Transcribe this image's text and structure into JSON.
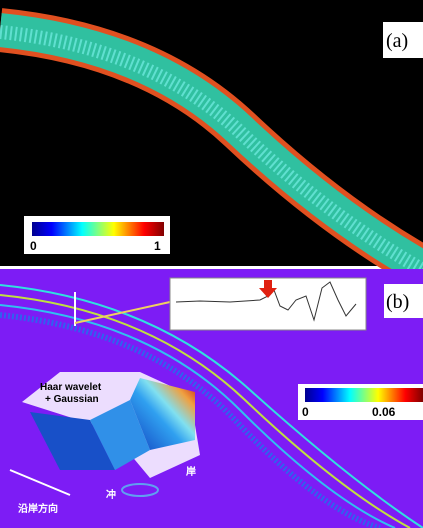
{
  "panel_a": {
    "label": "(a)",
    "colorbar": {
      "min": 0,
      "max": 1
    }
  },
  "panel_b": {
    "label": "(b)",
    "colorbar": {
      "min": 0,
      "max": 0.06
    },
    "inset": {
      "title_line1": "Haar wavelet",
      "title_line2": "+ Gaussian",
      "axis_alongshore": "沿岸方向",
      "axis_shore": "岸",
      "axis_offshore": "冲"
    }
  }
}
